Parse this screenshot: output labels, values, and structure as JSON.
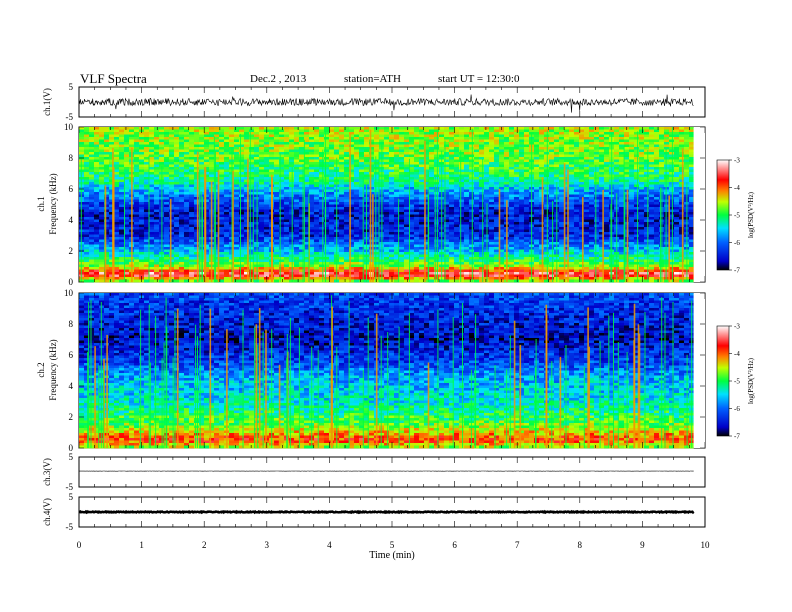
{
  "header": {
    "title": "VLF  Spectra",
    "date": "Dec.2  , 2013",
    "station": "station=ATH",
    "start": "start  UT  =   12:30:0"
  },
  "chart_data": [
    {
      "type": "line",
      "ylabel": "ch.1(V)",
      "ylim": [
        -5,
        5
      ],
      "yticks": [
        "5",
        "-5"
      ],
      "xlim": [
        0,
        10
      ],
      "baseline": 0,
      "noise_amplitude": 1.2,
      "data_end_x": 9.82
    },
    {
      "type": "heatmap",
      "channel": "ch.1",
      "ylabel": "Frequency  (kHz)",
      "ylim": [
        0,
        10
      ],
      "yticks": [
        "0",
        "2",
        "4",
        "6",
        "8",
        "10"
      ],
      "xlim": [
        0,
        10
      ],
      "data_end_x": 9.82,
      "colorbar": {
        "label": "log(PSD(V²/Hz)",
        "range": [
          -7,
          -3
        ],
        "ticks": [
          "-3",
          "-4",
          "-5",
          "-6",
          "-7"
        ]
      },
      "level_profile": [
        {
          "f": 0.0,
          "level": -5.0
        },
        {
          "f": 0.5,
          "level": -3.3
        },
        {
          "f": 1.0,
          "level": -4.6
        },
        {
          "f": 2.0,
          "level": -5.6
        },
        {
          "f": 3.0,
          "level": -6.4
        },
        {
          "f": 4.5,
          "level": -6.5
        },
        {
          "f": 5.5,
          "level": -6.0
        },
        {
          "f": 6.5,
          "level": -5.2
        },
        {
          "f": 8.0,
          "level": -4.8
        },
        {
          "f": 10.0,
          "level": -4.6
        }
      ]
    },
    {
      "type": "heatmap",
      "channel": "ch.2",
      "ylabel": "Frequency  (kHz)",
      "ylim": [
        0,
        10
      ],
      "yticks": [
        "0",
        "2",
        "4",
        "6",
        "8",
        "10"
      ],
      "xlim": [
        0,
        10
      ],
      "data_end_x": 9.82,
      "colorbar": {
        "label": "log(PSD(V²/Hz)",
        "range": [
          -7,
          -3
        ],
        "ticks": [
          "-3",
          "-4",
          "-5",
          "-6",
          "-7"
        ]
      },
      "level_profile": [
        {
          "f": 0.0,
          "level": -4.8
        },
        {
          "f": 0.5,
          "level": -3.8
        },
        {
          "f": 1.5,
          "level": -4.8
        },
        {
          "f": 3.0,
          "level": -5.4
        },
        {
          "f": 4.5,
          "level": -5.7
        },
        {
          "f": 5.5,
          "level": -6.2
        },
        {
          "f": 7.0,
          "level": -6.6
        },
        {
          "f": 8.5,
          "level": -6.4
        },
        {
          "f": 10.0,
          "level": -6.2
        }
      ]
    },
    {
      "type": "line",
      "ylabel": "ch.3(V)",
      "ylim": [
        -5,
        5
      ],
      "yticks": [
        "5",
        "-5"
      ],
      "xlim": [
        0,
        10
      ],
      "baseline": 0.3,
      "noise_amplitude": 0.05,
      "data_end_x": 9.82
    },
    {
      "type": "line",
      "ylabel": "ch.4(V)",
      "ylim": [
        -5,
        5
      ],
      "yticks": [
        "5",
        "-5"
      ],
      "xlim": [
        0,
        10
      ],
      "baseline": 0,
      "noise_amplitude": 0.15,
      "data_end_x": 9.82
    }
  ],
  "xaxis": {
    "label": "Time  (min)",
    "ticks": [
      "0",
      "1",
      "2",
      "3",
      "4",
      "5",
      "6",
      "7",
      "8",
      "9",
      "10"
    ]
  }
}
